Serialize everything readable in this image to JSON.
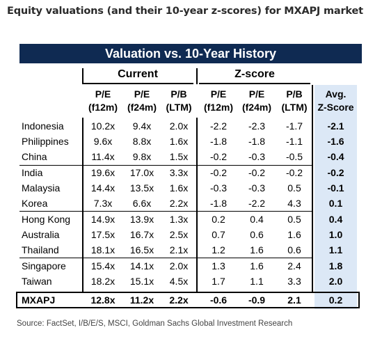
{
  "title": "Equity valuations (and their 10-year z-scores) for MXAPJ market",
  "banner": "Valuation vs. 10-Year History",
  "groups": {
    "current": "Current",
    "zscore": "Z-score"
  },
  "headers": {
    "pe_f12m": [
      "P/E",
      "(f12m)"
    ],
    "pe_f24m": [
      "P/E",
      "(f24m)"
    ],
    "pb_ltm": [
      "P/B",
      "(LTM)"
    ],
    "z_pe_f12m": [
      "P/E",
      "(f12m)"
    ],
    "z_pe_f24m": [
      "P/E",
      "(f24m)"
    ],
    "z_pb_ltm": [
      "P/B",
      "(LTM)"
    ],
    "avg": [
      "Avg.",
      "Z-Score"
    ]
  },
  "rows": [
    {
      "country": "Indonesia",
      "v": [
        "10.2x",
        "9.4x",
        "2.0x",
        "-2.2",
        "-2.3",
        "-1.7",
        "-2.1"
      ]
    },
    {
      "country": "Philippines",
      "v": [
        "9.6x",
        "8.8x",
        "1.6x",
        "-1.8",
        "-1.8",
        "-1.1",
        "-1.6"
      ]
    },
    {
      "country": "China",
      "v": [
        "11.4x",
        "9.8x",
        "1.5x",
        "-0.2",
        "-0.3",
        "-0.5",
        "-0.4"
      ]
    },
    {
      "country": "India",
      "v": [
        "19.6x",
        "17.0x",
        "3.3x",
        "-0.2",
        "-0.2",
        "-0.2",
        "-0.2"
      ]
    },
    {
      "country": "Malaysia",
      "v": [
        "14.4x",
        "13.5x",
        "1.6x",
        "-0.3",
        "-0.3",
        "0.5",
        "-0.1"
      ]
    },
    {
      "country": "Korea",
      "v": [
        "7.3x",
        "6.6x",
        "2.2x",
        "-1.8",
        "-2.2",
        "4.3",
        "0.1"
      ]
    },
    {
      "country": "Hong Kong",
      "v": [
        "14.9x",
        "13.9x",
        "1.3x",
        "0.2",
        "0.4",
        "0.5",
        "0.4"
      ]
    },
    {
      "country": "Australia",
      "v": [
        "17.5x",
        "16.7x",
        "2.5x",
        "0.7",
        "0.6",
        "1.6",
        "1.0"
      ]
    },
    {
      "country": "Thailand",
      "v": [
        "18.1x",
        "16.5x",
        "2.1x",
        "1.2",
        "1.6",
        "0.6",
        "1.1"
      ]
    },
    {
      "country": "Singapore",
      "v": [
        "15.4x",
        "14.1x",
        "2.0x",
        "1.3",
        "1.6",
        "2.4",
        "1.8"
      ]
    },
    {
      "country": "Taiwan",
      "v": [
        "18.2x",
        "15.1x",
        "4.5x",
        "1.7",
        "1.1",
        "3.3",
        "2.0"
      ]
    }
  ],
  "total": {
    "country": "MXAPJ",
    "v": [
      "12.8x",
      "11.2x",
      "2.2x",
      "-0.6",
      "-0.9",
      "2.1",
      "0.2"
    ]
  },
  "source": "Source: FactSet, I/B/E/S, MSCI, Goldman Sachs Global Investment Research",
  "colors": {
    "banner": "#0f2a52",
    "avg_column": "#dce8f6"
  }
}
